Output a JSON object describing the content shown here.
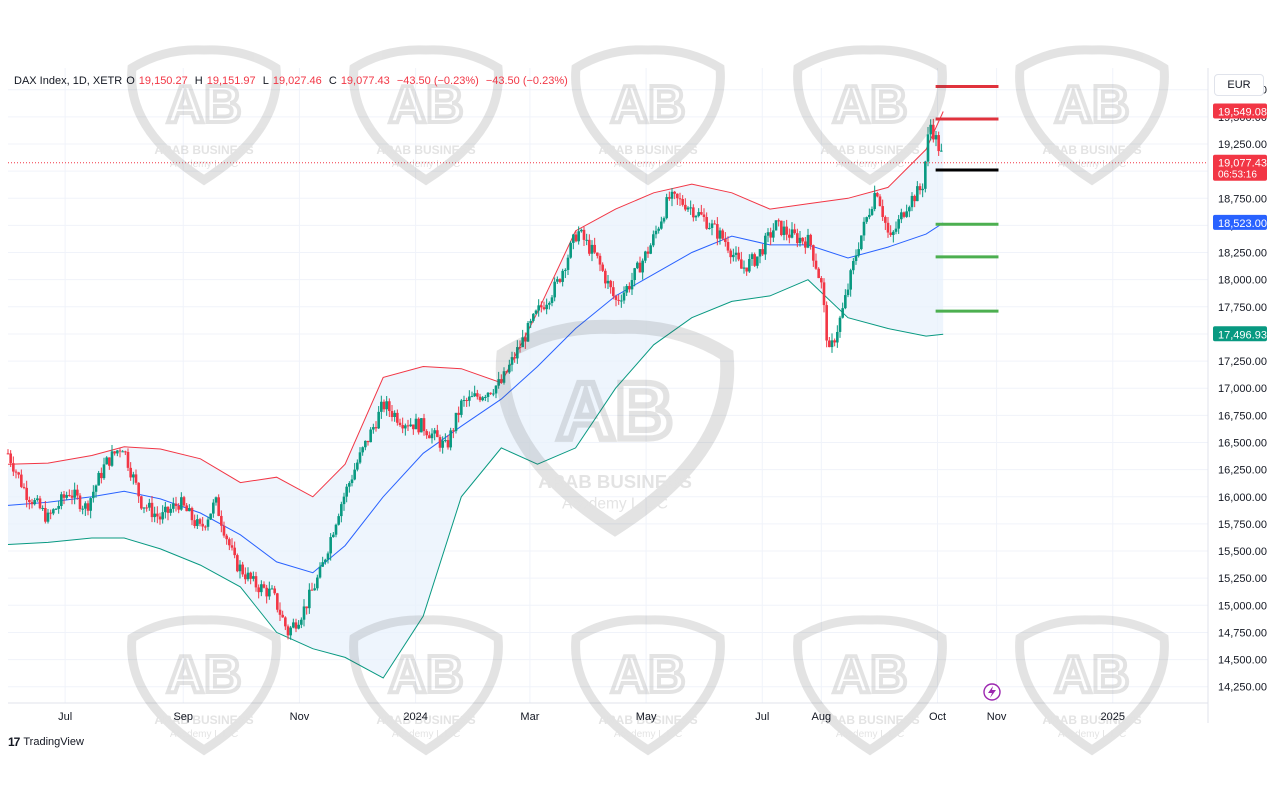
{
  "legend": {
    "symbol": "DAX Index, 1D, XETR",
    "o_label": "O",
    "o": "19,150.27",
    "h_label": "H",
    "h": "19,151.97",
    "l_label": "L",
    "l": "19,027.46",
    "c_label": "C",
    "c": "19,077.43",
    "change": "−43.50 (−0.23%)",
    "change2": "−43.50 (−0.23%)"
  },
  "currency": "EUR",
  "footer": {
    "brand": "TradingView"
  },
  "watermark": {
    "title": "ARAB BUSINESS",
    "subtitle": "Academy L.L.C",
    "monogram": "AB"
  },
  "colors": {
    "up": "#089981",
    "down": "#f23645",
    "basis": "#2962ff",
    "upper": "#f23645",
    "lower": "#089981",
    "band_fill": "#e8f2fc",
    "resistance": "#e0323c",
    "pivot": "#000000",
    "support": "#4caf50"
  },
  "chart_data": {
    "type": "candlestick",
    "title": "DAX Index, 1D, XETR",
    "y_axis": {
      "ylim": [
        14100,
        19950
      ],
      "ticks": [
        14250,
        14500,
        14750,
        15000,
        15250,
        15500,
        15750,
        16000,
        16250,
        16500,
        16750,
        17000,
        17250,
        17500,
        17750,
        18000,
        18250,
        18500,
        18750,
        19000,
        19250,
        19500,
        19750
      ],
      "tick_labels": [
        "14,250.00",
        "14,500.00",
        "14,750.00",
        "15,000.00",
        "15,250.00",
        "15,500.00",
        "15,750.00",
        "16,000.00",
        "16,250.00",
        "16,500.00",
        "16,750.00",
        "17,000.00",
        "17,250.00",
        "17,500.00",
        "17,750.00",
        "18,000.00",
        "18,250.00",
        "18,500.00",
        "18,750.00",
        "19,000.00",
        "19,250.00",
        "19,500.00",
        "19,750.00"
      ]
    },
    "x_axis": {
      "labels": [
        "Jul",
        "Sep",
        "Nov",
        "2024",
        "Mar",
        "May",
        "Jul",
        "Aug",
        "Oct",
        "Nov",
        "2025"
      ],
      "dates": [
        "2023-07-01",
        "2023-09-01",
        "2023-11-01",
        "2024-01-01",
        "2024-03-01",
        "2024-05-01",
        "2024-07-01",
        "2024-08-01",
        "2024-10-01",
        "2024-11-01",
        "2025-01-01"
      ],
      "range": [
        "2023-06-01",
        "2025-02-20"
      ]
    },
    "price_labels": [
      {
        "value": 19549.08,
        "label": "19,549.08",
        "color": "#f23645"
      },
      {
        "value": 19077.43,
        "label": "19,077.43",
        "sublabel": "06:53:16",
        "color": "#f23645"
      },
      {
        "value": 18523.0,
        "label": "18,523.00",
        "color": "#2962ff"
      },
      {
        "value": 17496.93,
        "label": "17,496.93",
        "color": "#089981"
      }
    ],
    "current_price": 19077.43,
    "levels": [
      {
        "name": "resistance-2",
        "value": 19780,
        "role": "resistance"
      },
      {
        "name": "resistance-1",
        "value": 19480,
        "role": "resistance"
      },
      {
        "name": "pivot",
        "value": 19010,
        "role": "pivot"
      },
      {
        "name": "support-1",
        "value": 18510,
        "role": "support"
      },
      {
        "name": "support-2",
        "value": 18210,
        "role": "support"
      },
      {
        "name": "support-3",
        "value": 17710,
        "role": "support"
      }
    ],
    "levels_x_range": [
      "2024-09-30",
      "2024-11-02"
    ],
    "price_path": [
      [
        "2023-06-01",
        16400
      ],
      [
        "2023-06-10",
        16050
      ],
      [
        "2023-06-22",
        15800
      ],
      [
        "2023-07-03",
        16050
      ],
      [
        "2023-07-12",
        15900
      ],
      [
        "2023-07-22",
        16300
      ],
      [
        "2023-07-31",
        16480
      ],
      [
        "2023-08-10",
        15950
      ],
      [
        "2023-08-20",
        15800
      ],
      [
        "2023-08-30",
        15950
      ],
      [
        "2023-09-10",
        15700
      ],
      [
        "2023-09-18",
        15950
      ],
      [
        "2023-09-28",
        15400
      ],
      [
        "2023-10-08",
        15200
      ],
      [
        "2023-10-18",
        15100
      ],
      [
        "2023-10-26",
        14750
      ],
      [
        "2023-11-03",
        14950
      ],
      [
        "2023-11-12",
        15300
      ],
      [
        "2023-11-22",
        15900
      ],
      [
        "2023-12-01",
        16300
      ],
      [
        "2023-12-10",
        16650
      ],
      [
        "2023-12-15",
        16850
      ],
      [
        "2023-12-25",
        16700
      ],
      [
        "2024-01-05",
        16650
      ],
      [
        "2024-01-17",
        16450
      ],
      [
        "2024-01-25",
        16850
      ],
      [
        "2024-02-05",
        16950
      ],
      [
        "2024-02-15",
        17050
      ],
      [
        "2024-02-25",
        17400
      ],
      [
        "2024-03-05",
        17700
      ],
      [
        "2024-03-15",
        17950
      ],
      [
        "2024-03-26",
        18450
      ],
      [
        "2024-04-05",
        18200
      ],
      [
        "2024-04-15",
        17800
      ],
      [
        "2024-04-22",
        17950
      ],
      [
        "2024-05-03",
        18300
      ],
      [
        "2024-05-13",
        18750
      ],
      [
        "2024-05-22",
        18700
      ],
      [
        "2024-06-01",
        18550
      ],
      [
        "2024-06-12",
        18350
      ],
      [
        "2024-06-20",
        18100
      ],
      [
        "2024-06-28",
        18200
      ],
      [
        "2024-07-08",
        18500
      ],
      [
        "2024-07-17",
        18400
      ],
      [
        "2024-07-26",
        18350
      ],
      [
        "2024-08-01",
        17950
      ],
      [
        "2024-08-05",
        17300
      ],
      [
        "2024-08-12",
        17700
      ],
      [
        "2024-08-20",
        18300
      ],
      [
        "2024-08-30",
        18850
      ],
      [
        "2024-09-06",
        18350
      ],
      [
        "2024-09-15",
        18700
      ],
      [
        "2024-09-23",
        18850
      ],
      [
        "2024-09-27",
        19450
      ],
      [
        "2024-10-01",
        19250
      ],
      [
        "2024-10-04",
        19100
      ]
    ],
    "bollinger": {
      "basis": [
        [
          "2023-06-01",
          15920
        ],
        [
          "2023-06-22",
          15950
        ],
        [
          "2023-07-15",
          16000
        ],
        [
          "2023-08-01",
          16050
        ],
        [
          "2023-08-20",
          15980
        ],
        [
          "2023-09-10",
          15850
        ],
        [
          "2023-10-01",
          15650
        ],
        [
          "2023-10-20",
          15400
        ],
        [
          "2023-11-08",
          15300
        ],
        [
          "2023-11-25",
          15550
        ],
        [
          "2023-12-15",
          16000
        ],
        [
          "2024-01-05",
          16400
        ],
        [
          "2024-01-25",
          16650
        ],
        [
          "2024-02-15",
          16900
        ],
        [
          "2024-03-05",
          17200
        ],
        [
          "2024-03-25",
          17550
        ],
        [
          "2024-04-15",
          17850
        ],
        [
          "2024-05-05",
          18050
        ],
        [
          "2024-05-25",
          18250
        ],
        [
          "2024-06-15",
          18400
        ],
        [
          "2024-07-05",
          18320
        ],
        [
          "2024-07-25",
          18320
        ],
        [
          "2024-08-15",
          18200
        ],
        [
          "2024-09-05",
          18300
        ],
        [
          "2024-09-25",
          18420
        ],
        [
          "2024-10-04",
          18523
        ]
      ],
      "upper": [
        [
          "2023-06-01",
          16300
        ],
        [
          "2023-06-22",
          16310
        ],
        [
          "2023-07-15",
          16380
        ],
        [
          "2023-08-01",
          16460
        ],
        [
          "2023-08-20",
          16440
        ],
        [
          "2023-09-10",
          16350
        ],
        [
          "2023-10-01",
          16130
        ],
        [
          "2023-10-20",
          16180
        ],
        [
          "2023-11-08",
          16000
        ],
        [
          "2023-11-25",
          16300
        ],
        [
          "2023-12-15",
          17100
        ],
        [
          "2024-01-05",
          17200
        ],
        [
          "2024-01-25",
          17180
        ],
        [
          "2024-02-15",
          17050
        ],
        [
          "2024-03-05",
          17700
        ],
        [
          "2024-03-25",
          18450
        ],
        [
          "2024-04-15",
          18650
        ],
        [
          "2024-05-05",
          18800
        ],
        [
          "2024-05-25",
          18880
        ],
        [
          "2024-06-15",
          18800
        ],
        [
          "2024-07-05",
          18650
        ],
        [
          "2024-07-25",
          18700
        ],
        [
          "2024-08-15",
          18750
        ],
        [
          "2024-09-05",
          18850
        ],
        [
          "2024-09-25",
          19200
        ],
        [
          "2024-10-04",
          19549
        ]
      ],
      "lower": [
        [
          "2023-06-01",
          15560
        ],
        [
          "2023-06-22",
          15580
        ],
        [
          "2023-07-15",
          15620
        ],
        [
          "2023-08-01",
          15620
        ],
        [
          "2023-08-20",
          15520
        ],
        [
          "2023-09-10",
          15370
        ],
        [
          "2023-10-01",
          15170
        ],
        [
          "2023-10-20",
          14750
        ],
        [
          "2023-11-08",
          14600
        ],
        [
          "2023-11-25",
          14520
        ],
        [
          "2023-12-15",
          14330
        ],
        [
          "2024-01-05",
          14900
        ],
        [
          "2024-01-25",
          16000
        ],
        [
          "2024-02-15",
          16450
        ],
        [
          "2024-03-05",
          16300
        ],
        [
          "2024-03-25",
          16450
        ],
        [
          "2024-04-15",
          17000
        ],
        [
          "2024-05-05",
          17400
        ],
        [
          "2024-05-25",
          17650
        ],
        [
          "2024-06-15",
          17800
        ],
        [
          "2024-07-05",
          17850
        ],
        [
          "2024-07-25",
          18000
        ],
        [
          "2024-08-15",
          17650
        ],
        [
          "2024-09-05",
          17550
        ],
        [
          "2024-09-25",
          17480
        ],
        [
          "2024-10-04",
          17497
        ]
      ]
    }
  }
}
